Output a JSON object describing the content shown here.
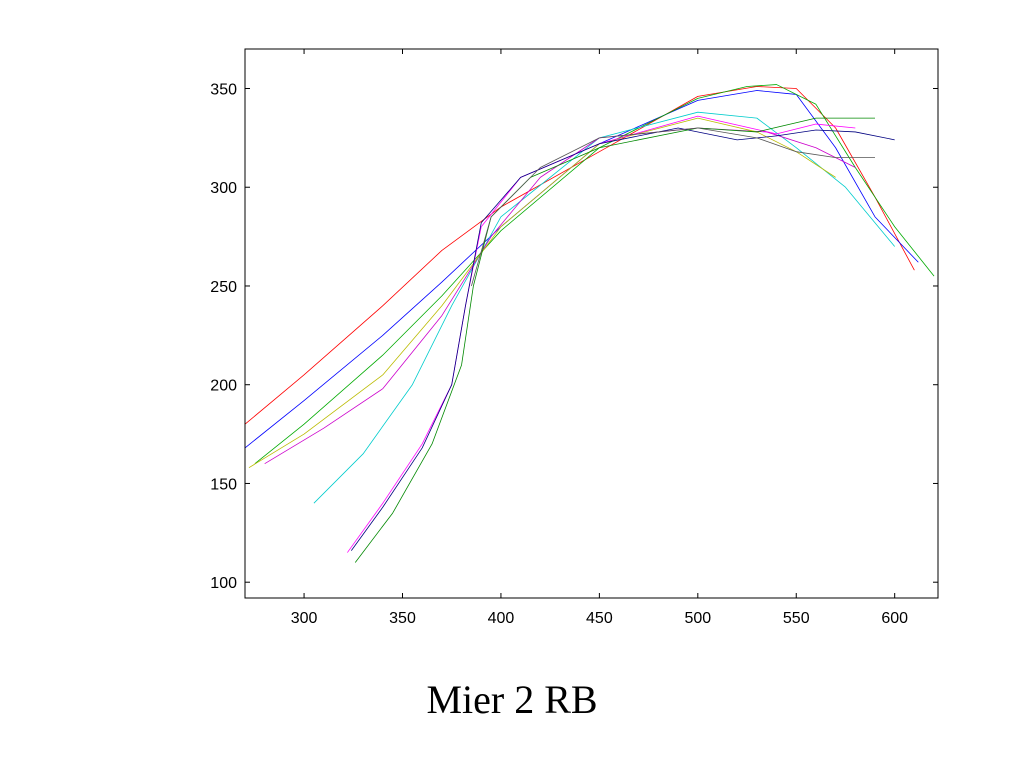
{
  "caption": "Mier 2 RB",
  "chart_data": {
    "type": "line",
    "title": "",
    "xlabel": "",
    "ylabel": "",
    "xlim": [
      270,
      622
    ],
    "ylim": [
      92,
      370
    ],
    "xticks": [
      300,
      350,
      400,
      450,
      500,
      550,
      600
    ],
    "yticks": [
      100,
      150,
      200,
      250,
      300,
      350
    ],
    "grid": false,
    "legend": "none",
    "series": [
      {
        "color": "#ff0000",
        "x": [
          270,
          300,
          340,
          370,
          400,
          450,
          500,
          530,
          550,
          570,
          590,
          610
        ],
        "y": [
          180,
          205,
          240,
          268,
          290,
          318,
          346,
          351,
          350,
          330,
          295,
          258
        ]
      },
      {
        "color": "#0000ff",
        "x": [
          270,
          300,
          340,
          370,
          400,
          450,
          500,
          530,
          550,
          570,
          590,
          612
        ],
        "y": [
          168,
          192,
          225,
          252,
          280,
          322,
          344,
          349,
          347,
          320,
          285,
          262
        ]
      },
      {
        "color": "#00aa00",
        "x": [
          275,
          300,
          340,
          370,
          400,
          450,
          500,
          525,
          540,
          560,
          580,
          600,
          620
        ],
        "y": [
          160,
          180,
          215,
          245,
          278,
          320,
          345,
          351,
          352,
          342,
          310,
          280,
          255
        ]
      },
      {
        "color": "#00cccc",
        "x": [
          305,
          330,
          355,
          375,
          400,
          450,
          500,
          530,
          550,
          575,
          600
        ],
        "y": [
          140,
          165,
          200,
          240,
          285,
          325,
          338,
          335,
          320,
          300,
          270
        ]
      },
      {
        "color": "#cc00cc",
        "x": [
          280,
          310,
          340,
          370,
          395,
          420,
          450,
          500,
          535,
          560,
          580
        ],
        "y": [
          160,
          178,
          198,
          235,
          275,
          305,
          325,
          330,
          328,
          320,
          310
        ]
      },
      {
        "color": "#bbbb00",
        "x": [
          272,
          300,
          340,
          370,
          400,
          450,
          500,
          530,
          550,
          570
        ],
        "y": [
          158,
          175,
          205,
          240,
          280,
          322,
          335,
          328,
          318,
          305
        ]
      },
      {
        "color": "#ff00ff",
        "x": [
          322,
          340,
          360,
          375,
          382,
          390,
          410,
          450,
          500,
          540,
          560,
          580
        ],
        "y": [
          115,
          140,
          170,
          200,
          240,
          280,
          305,
          322,
          336,
          327,
          332,
          330
        ]
      },
      {
        "color": "#000080",
        "x": [
          324,
          340,
          360,
          375,
          382,
          390,
          410,
          450,
          490,
          520,
          540,
          560,
          580,
          600
        ],
        "y": [
          116,
          138,
          168,
          200,
          240,
          282,
          305,
          322,
          330,
          324,
          326,
          329,
          328,
          324
        ]
      },
      {
        "color": "#008800",
        "x": [
          326,
          345,
          365,
          380,
          386,
          395,
          415,
          450,
          500,
          530,
          560,
          590
        ],
        "y": [
          110,
          135,
          170,
          210,
          250,
          285,
          305,
          320,
          330,
          328,
          335,
          335
        ]
      },
      {
        "color": "#555555",
        "x": [
          385,
          395,
          420,
          450,
          500,
          530,
          550,
          570,
          590
        ],
        "y": [
          250,
          285,
          310,
          325,
          330,
          325,
          318,
          315,
          315
        ]
      }
    ]
  }
}
